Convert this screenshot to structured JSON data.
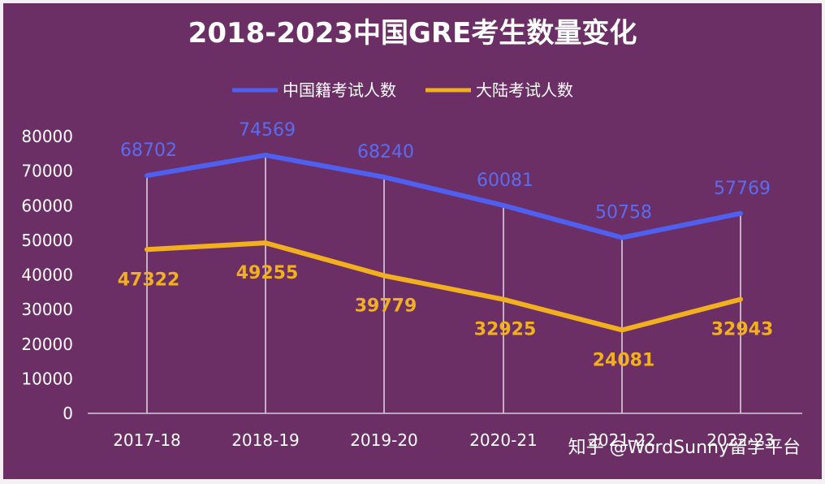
{
  "chart_data": {
    "type": "line",
    "title": "2018-2023中国GRE考生数量变化",
    "categories": [
      "2017-18",
      "2018-19",
      "2019-20",
      "2020-21",
      "2021-22",
      "2022-23"
    ],
    "series": [
      {
        "name": "中国籍考试人数",
        "values": [
          68702,
          74569,
          68240,
          60081,
          50758,
          57769
        ],
        "color": "#4f5ff0"
      },
      {
        "name": "大陆考试人数",
        "values": [
          47322,
          49255,
          39779,
          32925,
          24081,
          32943
        ],
        "color": "#f2b01e"
      }
    ],
    "ylim": [
      0,
      80000
    ],
    "yticks": [
      "0",
      "10000",
      "20000",
      "30000",
      "40000",
      "50000",
      "60000",
      "70000",
      "80000"
    ],
    "legend_position": "top",
    "grid": false,
    "drop_lines": true
  },
  "watermark": "知乎 @WordSunny留学平台",
  "colors": {
    "background": "#6b2f66",
    "text": "#ffffff",
    "axis": "#d8c8d8"
  }
}
